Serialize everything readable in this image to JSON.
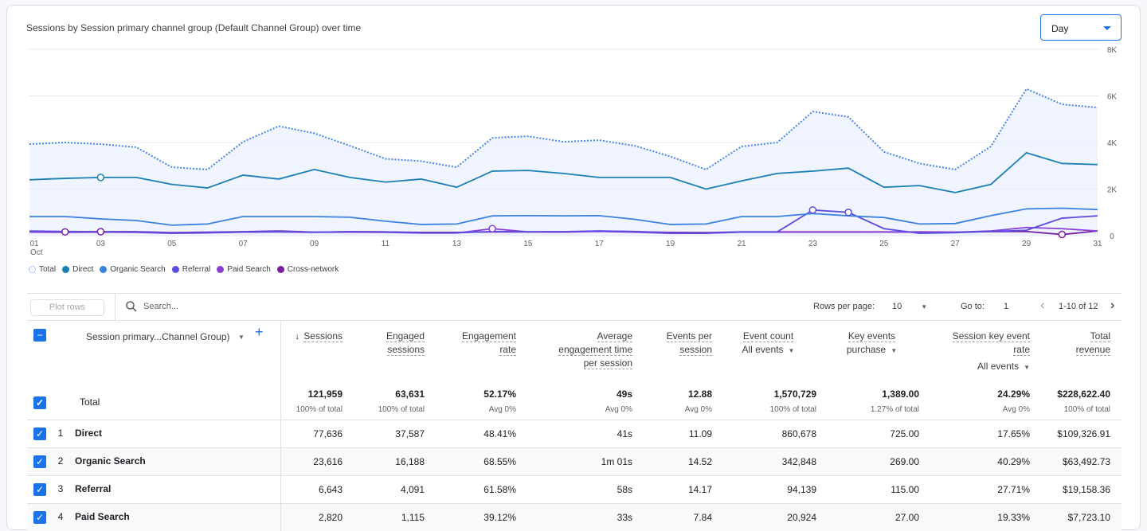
{
  "title": "Sessions by Session primary channel group (Default Channel Group) over time",
  "granularity": "Day",
  "legend": [
    {
      "label": "Total",
      "color": "#4a86e8"
    },
    {
      "label": "Direct",
      "color": "#1a7fb3"
    },
    {
      "label": "Organic Search",
      "color": "#3b82e0"
    },
    {
      "label": "Referral",
      "color": "#5b4de0"
    },
    {
      "label": "Paid Search",
      "color": "#8a3fd6"
    },
    {
      "label": "Cross-network",
      "color": "#7b1fa2"
    }
  ],
  "chart_data": {
    "type": "line",
    "title": "Sessions by Session primary channel group (Default Channel Group) over time",
    "x": [
      1,
      2,
      3,
      4,
      5,
      6,
      7,
      8,
      9,
      10,
      11,
      12,
      13,
      14,
      15,
      16,
      17,
      18,
      19,
      20,
      21,
      22,
      23,
      24,
      25,
      26,
      27,
      28,
      29,
      30,
      31
    ],
    "xticks": [
      "01",
      "03",
      "05",
      "07",
      "09",
      "11",
      "13",
      "15",
      "17",
      "19",
      "21",
      "23",
      "25",
      "27",
      "29",
      "31"
    ],
    "xsub": "Oct",
    "yticks": [
      "0",
      "2K",
      "4K",
      "6K",
      "8K"
    ],
    "ylim": [
      0,
      8000
    ],
    "series": [
      {
        "name": "Total",
        "values": [
          3930,
          4000,
          3930,
          3800,
          2940,
          2840,
          4030,
          4700,
          4400,
          3860,
          3300,
          3200,
          2940,
          4200,
          4270,
          4030,
          4100,
          3860,
          3400,
          2840,
          3830,
          4000,
          5330,
          5100,
          3600,
          3100,
          2840,
          3830,
          6300,
          5640,
          5500
        ]
      },
      {
        "name": "Direct",
        "values": [
          2400,
          2460,
          2500,
          2500,
          2200,
          2050,
          2600,
          2430,
          2840,
          2500,
          2300,
          2430,
          2080,
          2770,
          2800,
          2670,
          2500,
          2500,
          2500,
          2000,
          2350,
          2670,
          2770,
          2900,
          2080,
          2150,
          1850,
          2200,
          3560,
          3100,
          3050
        ]
      },
      {
        "name": "Organic Search",
        "values": [
          820,
          820,
          720,
          650,
          450,
          500,
          820,
          820,
          820,
          790,
          620,
          480,
          500,
          850,
          860,
          850,
          860,
          700,
          480,
          500,
          820,
          820,
          950,
          850,
          780,
          500,
          520,
          860,
          1150,
          1180,
          1120
        ]
      },
      {
        "name": "Referral",
        "values": [
          200,
          180,
          170,
          160,
          120,
          130,
          160,
          180,
          150,
          170,
          160,
          120,
          120,
          180,
          170,
          170,
          200,
          180,
          120,
          110,
          160,
          160,
          1100,
          1000,
          300,
          100,
          130,
          180,
          230,
          750,
          850
        ]
      },
      {
        "name": "Paid Search",
        "values": [
          150,
          140,
          150,
          140,
          100,
          120,
          150,
          160,
          140,
          150,
          140,
          110,
          110,
          300,
          160,
          150,
          180,
          150,
          100,
          100,
          150,
          150,
          150,
          150,
          160,
          150,
          150,
          200,
          350,
          300,
          200
        ]
      },
      {
        "name": "Cross-network",
        "values": [
          180,
          160,
          170,
          170,
          130,
          150,
          170,
          200,
          150,
          170,
          160,
          140,
          140,
          160,
          160,
          160,
          200,
          170,
          140,
          130,
          160,
          160,
          160,
          160,
          160,
          160,
          150,
          170,
          180,
          50,
          200
        ]
      }
    ]
  },
  "toolbar": {
    "plot_rows": "Plot rows",
    "search_placeholder": "Search...",
    "rows_per_page_label": "Rows per page:",
    "rows_per_page": "10",
    "goto_label": "Go to:",
    "goto_value": "1",
    "range": "1-10 of 12"
  },
  "table": {
    "dimension_header": "Session primary...Channel Group)",
    "columns": [
      {
        "l1": "Sessions",
        "sort": "↓"
      },
      {
        "l1": "Engaged",
        "l2": "sessions"
      },
      {
        "l1": "Engagement",
        "l2": "rate"
      },
      {
        "l1": "Average",
        "l2": "engagement time",
        "l3": "per session"
      },
      {
        "l1": "Events per",
        "l2": "session"
      },
      {
        "l1": "Event count",
        "dd": "All events"
      },
      {
        "l1": "Key events",
        "dd": "purchase"
      },
      {
        "l1": "Session key event",
        "l2": "rate",
        "dd": "All events"
      },
      {
        "l1": "Total",
        "l2": "revenue"
      }
    ],
    "total": {
      "label": "Total",
      "values": [
        "121,959",
        "63,631",
        "52.17%",
        "49s",
        "12.88",
        "1,570,729",
        "1,389.00",
        "24.29%",
        "$228,622.40"
      ],
      "subs": [
        "100% of total",
        "100% of total",
        "Avg 0%",
        "Avg 0%",
        "Avg 0%",
        "100% of total",
        "1.27% of total",
        "Avg 0%",
        "100% of total"
      ]
    },
    "rows": [
      {
        "n": "1",
        "name": "Direct",
        "values": [
          "77,636",
          "37,587",
          "48.41%",
          "41s",
          "11.09",
          "860,678",
          "725.00",
          "17.65%",
          "$109,326.91"
        ]
      },
      {
        "n": "2",
        "name": "Organic Search",
        "values": [
          "23,616",
          "16,188",
          "68.55%",
          "1m 01s",
          "14.52",
          "342,848",
          "269.00",
          "40.29%",
          "$63,492.73"
        ]
      },
      {
        "n": "3",
        "name": "Referral",
        "values": [
          "6,643",
          "4,091",
          "61.58%",
          "58s",
          "14.17",
          "94,139",
          "115.00",
          "27.71%",
          "$19,158.36"
        ]
      },
      {
        "n": "4",
        "name": "Paid Search",
        "values": [
          "2,820",
          "1,115",
          "39.12%",
          "33s",
          "7.84",
          "20,924",
          "27.00",
          "19.33%",
          "$7,723.10"
        ]
      }
    ]
  }
}
